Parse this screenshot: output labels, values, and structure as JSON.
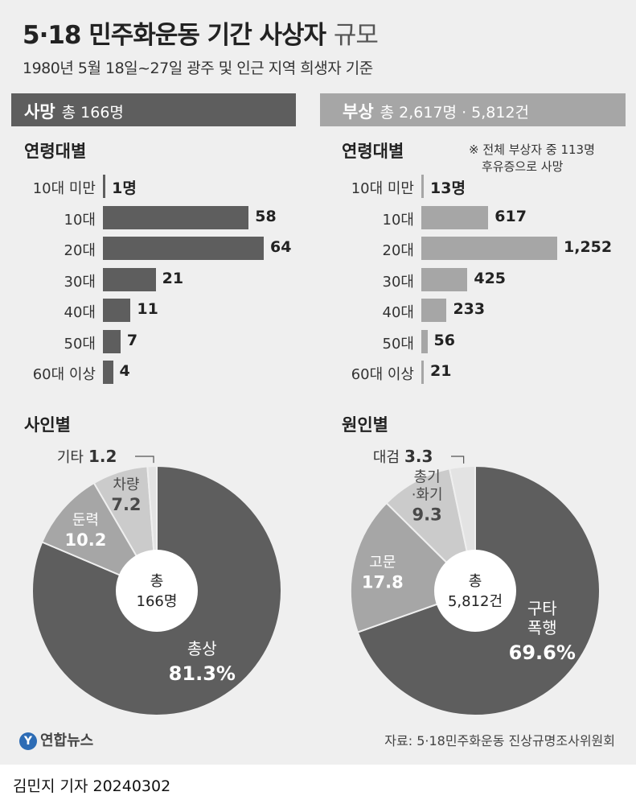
{
  "header": {
    "title_main": "5·18 민주화운동 기간 사상자",
    "title_light": "규모",
    "subtitle": "1980년 5월 18일~27일 광주 및 인근 지역 희생자 기준"
  },
  "deaths": {
    "band_title": "사망",
    "band_detail": "총 166명",
    "age_heading": "연령대별",
    "cause_heading": "사인별"
  },
  "injuries": {
    "band_title": "부상",
    "band_detail": "총 2,617명 · 5,812건",
    "age_heading": "연령대별",
    "cause_heading": "원인별",
    "note_line1": "※ 전체 부상자 중 113명",
    "note_line2": "후유증으로 사망"
  },
  "colors": {
    "dark": "#5e5e5e",
    "mid": "#a6a6a6",
    "light": "#cbcbcb",
    "lighter": "#e3e3e3",
    "background": "#efefef"
  },
  "chart_data": [
    {
      "type": "bar",
      "orientation": "horizontal",
      "title": "연령대별",
      "categories": [
        "10대 미만",
        "10대",
        "20대",
        "30대",
        "40대",
        "50대",
        "60대 이상"
      ],
      "values": [
        1,
        58,
        64,
        21,
        11,
        7,
        4
      ],
      "value_labels": [
        "1명",
        "58",
        "64",
        "21",
        "11",
        "7",
        "4"
      ],
      "color": "#5e5e5e"
    },
    {
      "type": "bar",
      "orientation": "horizontal",
      "title": "연령대별",
      "categories": [
        "10대 미만",
        "10대",
        "20대",
        "30대",
        "40대",
        "50대",
        "60대 이상"
      ],
      "values": [
        13,
        617,
        1252,
        425,
        233,
        56,
        21
      ],
      "value_labels": [
        "13명",
        "617",
        "1,252",
        "425",
        "233",
        "56",
        "21"
      ],
      "color": "#a6a6a6"
    },
    {
      "type": "pie",
      "donut": true,
      "title": "사인별",
      "center_line1": "총",
      "center_line2": "166명",
      "slices": [
        {
          "name": "총상",
          "value": 81.3,
          "label": "81.3%",
          "color": "#5e5e5e",
          "text_color": "#ffffff"
        },
        {
          "name": "둔력",
          "value": 10.2,
          "label": "10.2",
          "color": "#a6a6a6",
          "text_color": "#ffffff"
        },
        {
          "name": "차량",
          "value": 7.2,
          "label": "7.2",
          "color": "#cbcbcb",
          "text_color": "#4a4a4a"
        },
        {
          "name": "기타",
          "value": 1.2,
          "label": "1.2",
          "color": "#e3e3e3",
          "text_color": "#4a4a4a"
        }
      ]
    },
    {
      "type": "pie",
      "donut": true,
      "title": "원인별",
      "center_line1": "총",
      "center_line2": "5,812건",
      "slices": [
        {
          "name": "구타 폭행",
          "name_lines": [
            "구타",
            "폭행"
          ],
          "value": 69.6,
          "label": "69.6%",
          "color": "#5e5e5e",
          "text_color": "#ffffff"
        },
        {
          "name": "고문",
          "value": 17.8,
          "label": "17.8",
          "color": "#a6a6a6",
          "text_color": "#ffffff"
        },
        {
          "name": "총기·화기",
          "name_lines": [
            "총기",
            "·화기"
          ],
          "value": 9.3,
          "label": "9.3",
          "color": "#cbcbcb",
          "text_color": "#4a4a4a"
        },
        {
          "name": "대검",
          "value": 3.3,
          "label": "3.3",
          "color": "#e3e3e3",
          "text_color": "#4a4a4a"
        }
      ]
    }
  ],
  "footer": {
    "logo_mark": "Y",
    "logo_text": "연합뉴스",
    "source": "자료: 5·18민주화운동 진상규명조사위원회",
    "credit": "김민지 기자  20240302"
  }
}
